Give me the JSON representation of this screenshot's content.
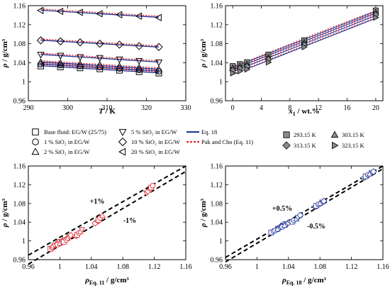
{
  "chart_data": [
    {
      "id": "a",
      "type": "scatter",
      "xlabel_main": "T",
      "xlabel_unit": " / K",
      "ylabel_main": "ρ",
      "ylabel_unit": " / g/cm³",
      "xlim": [
        290,
        330
      ],
      "ylim": [
        0.96,
        1.16
      ],
      "xticks": [
        290,
        300,
        310,
        320,
        330
      ],
      "yticks": [
        0.96,
        1,
        1.04,
        1.08,
        1.12,
        1.16
      ],
      "x": [
        293.15,
        298.15,
        303.15,
        308.15,
        313.15,
        318.15,
        323.15
      ],
      "series": [
        {
          "name": "Base fluid: EG/W (25/75)",
          "marker": "square",
          "values": [
            1.033,
            1.031,
            1.029,
            1.027,
            1.024,
            1.021,
            1.018
          ]
        },
        {
          "name": "1 % SiO₂ in EG/W",
          "marker": "circle",
          "values": [
            1.037,
            1.035,
            1.033,
            1.031,
            1.028,
            1.025,
            1.022
          ]
        },
        {
          "name": "2 % SiO₂ in EG/W",
          "marker": "triangle-up",
          "values": [
            1.041,
            1.039,
            1.037,
            1.035,
            1.032,
            1.029,
            1.026
          ]
        },
        {
          "name": "5 % SiO₂ in EG/W",
          "marker": "triangle-down",
          "values": [
            1.057,
            1.055,
            1.052,
            1.05,
            1.047,
            1.044,
            1.041
          ]
        },
        {
          "name": "10 % SiO₂ in EG/W",
          "marker": "diamond",
          "values": [
            1.087,
            1.085,
            1.083,
            1.08,
            1.078,
            1.075,
            1.073
          ]
        },
        {
          "name": "20 % SiO₂ in EG/W",
          "marker": "triangle-left",
          "values": [
            1.15,
            1.148,
            1.146,
            1.143,
            1.141,
            1.138,
            1.135
          ]
        }
      ],
      "legend": [
        {
          "label": "Base fluid: EG/W (25/75)",
          "marker": "square"
        },
        {
          "label": "5 % SiO₂ in EG/W",
          "marker": "triangle-down"
        },
        {
          "label": "Eq. 18",
          "marker": "solid-line"
        },
        {
          "label": "1 % SiO₂ in EG/W",
          "marker": "circle"
        },
        {
          "label": "10 % SiO₂ in EG/W",
          "marker": "diamond"
        },
        {
          "label": "Pak and Cho (Eq. 11)",
          "marker": "dashed-line"
        },
        {
          "label": "2 % SiO₂ in EG/W",
          "marker": "triangle-up"
        },
        {
          "label": "20 % SiO₂ in EG/W",
          "marker": "triangle-left"
        }
      ]
    },
    {
      "id": "b",
      "type": "scatter",
      "xlabel_main": "x",
      "xlabel_sub": "1",
      "xlabel_unit": " / wt.%",
      "ylabel_main": "ρ",
      "ylabel_unit": " / g/cm³",
      "xlim": [
        -1,
        21
      ],
      "ylim": [
        0.96,
        1.16
      ],
      "xticks": [
        0,
        4,
        8,
        12,
        16,
        20
      ],
      "yticks": [
        0.96,
        1,
        1.04,
        1.08,
        1.12,
        1.16
      ],
      "x": [
        0,
        1,
        2,
        5,
        10,
        20
      ],
      "series": [
        {
          "name": "293.15 K",
          "marker": "square",
          "values": [
            1.033,
            1.037,
            1.041,
            1.057,
            1.087,
            1.15
          ]
        },
        {
          "name": "303.15 K",
          "marker": "triangle-up",
          "values": [
            1.029,
            1.033,
            1.037,
            1.052,
            1.083,
            1.146
          ]
        },
        {
          "name": "313.15 K",
          "marker": "diamond",
          "values": [
            1.024,
            1.028,
            1.032,
            1.047,
            1.078,
            1.141
          ]
        },
        {
          "name": "323.15 K",
          "marker": "triangle-right",
          "values": [
            1.018,
            1.022,
            1.026,
            1.041,
            1.073,
            1.135
          ]
        }
      ],
      "legend": [
        {
          "label": "293.15 K",
          "marker": "square"
        },
        {
          "label": "303.15 K",
          "marker": "triangle-up"
        },
        {
          "label": "313.15 K",
          "marker": "diamond"
        },
        {
          "label": "323.15 K",
          "marker": "triangle-right"
        }
      ]
    },
    {
      "id": "c",
      "type": "scatter",
      "xlabel_main": "ρ",
      "xlabel_sub": "Eq. 11",
      "xlabel_unit": " / g/cm³",
      "ylabel_main": "ρ",
      "ylabel_unit": " / g/cm³",
      "xlim": [
        0.96,
        1.16
      ],
      "ylim": [
        0.96,
        1.16
      ],
      "xticks": [
        0.96,
        1,
        1.04,
        1.08,
        1.12,
        1.16
      ],
      "yticks": [
        0.96,
        1,
        1.04,
        1.08,
        1.12,
        1.16
      ],
      "annotations": [
        "+1%",
        "-1%"
      ],
      "points": [
        [
          0.988,
          0.983
        ],
        [
          0.99,
          0.986
        ],
        [
          0.991,
          0.989
        ],
        [
          0.993,
          0.991
        ],
        [
          0.996,
          0.994
        ],
        [
          0.998,
          0.996
        ],
        [
          1.0,
          0.998
        ],
        [
          0.997,
          0.992
        ],
        [
          1.0,
          0.995
        ],
        [
          1.002,
          0.998
        ],
        [
          1.004,
          1.001
        ],
        [
          1.006,
          1.004
        ],
        [
          1.005,
          0.998
        ],
        [
          1.008,
          1.002
        ],
        [
          1.01,
          1.006
        ],
        [
          1.012,
          1.009
        ],
        [
          1.014,
          1.012
        ],
        [
          1.019,
          1.01
        ],
        [
          1.022,
          1.013
        ],
        [
          1.024,
          1.017
        ],
        [
          1.026,
          1.02
        ],
        [
          1.028,
          1.024
        ],
        [
          1.045,
          1.038
        ],
        [
          1.047,
          1.042
        ],
        [
          1.049,
          1.045
        ],
        [
          1.051,
          1.049
        ],
        [
          1.054,
          1.054
        ],
        [
          1.11,
          1.102
        ],
        [
          1.112,
          1.106
        ],
        [
          1.114,
          1.11
        ],
        [
          1.116,
          1.114
        ],
        [
          1.118,
          1.118
        ]
      ]
    },
    {
      "id": "d",
      "type": "scatter",
      "xlabel_main": "ρ",
      "xlabel_sub": "Eq. 18",
      "xlabel_unit": " / g/cm³",
      "ylabel_main": "ρ",
      "ylabel_unit": " / g/cm³",
      "xlim": [
        0.96,
        1.16
      ],
      "ylim": [
        0.96,
        1.16
      ],
      "xticks": [
        0.96,
        1,
        1.04,
        1.08,
        1.12,
        1.16
      ],
      "yticks": [
        0.96,
        1,
        1.04,
        1.08,
        1.12,
        1.16
      ],
      "annotations": [
        "+0.5%",
        "-0.5%"
      ],
      "points": [
        [
          1.018,
          1.018
        ],
        [
          1.021,
          1.021
        ],
        [
          1.024,
          1.024
        ],
        [
          1.027,
          1.027
        ],
        [
          1.029,
          1.029
        ],
        [
          1.031,
          1.031
        ],
        [
          1.033,
          1.033
        ],
        [
          1.023,
          1.022
        ],
        [
          1.026,
          1.025
        ],
        [
          1.029,
          1.028
        ],
        [
          1.031,
          1.031
        ],
        [
          1.034,
          1.034
        ],
        [
          1.036,
          1.036
        ],
        [
          1.032,
          1.03
        ],
        [
          1.035,
          1.033
        ],
        [
          1.038,
          1.036
        ],
        [
          1.04,
          1.039
        ],
        [
          1.042,
          1.041
        ],
        [
          1.045,
          1.041
        ],
        [
          1.047,
          1.044
        ],
        [
          1.05,
          1.047
        ],
        [
          1.052,
          1.05
        ],
        [
          1.055,
          1.055
        ],
        [
          1.073,
          1.073
        ],
        [
          1.075,
          1.075
        ],
        [
          1.078,
          1.078
        ],
        [
          1.08,
          1.08
        ],
        [
          1.083,
          1.083
        ],
        [
          1.085,
          1.085
        ],
        [
          1.135,
          1.135
        ],
        [
          1.138,
          1.138
        ],
        [
          1.141,
          1.141
        ],
        [
          1.143,
          1.143
        ],
        [
          1.146,
          1.146
        ],
        [
          1.148,
          1.148
        ]
      ]
    }
  ],
  "colors": {
    "eq18": "#1f2f8f",
    "pakcho": "#e0202a",
    "marker_fill_gray": "#8a8a8a",
    "panel_c_points": "#d9323c",
    "panel_d_points": "#2b3f99"
  }
}
